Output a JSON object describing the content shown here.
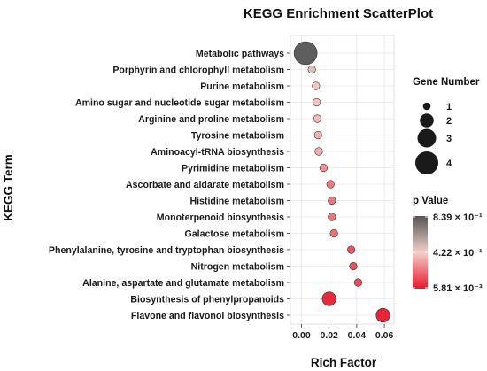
{
  "chart_data": {
    "type": "scatter",
    "title": "KEGG Enrichment ScatterPlot",
    "xlabel": "Rich Factor",
    "ylabel": "KEGG Term",
    "xlim": [
      -0.008,
      0.067
    ],
    "x_ticks": [
      0.0,
      0.02,
      0.04,
      0.06
    ],
    "x_tick_labels": [
      "0.00",
      "0.02",
      "0.04",
      "0.06"
    ],
    "grid": true,
    "legend_position": "right",
    "categories": [
      "Metabolic pathways",
      "Porphyrin and chlorophyll metabolism",
      "Purine metabolism",
      "Amino sugar and nucleotide sugar metabolism",
      "Arginine and proline metabolism",
      "Tyrosine metabolism",
      "Aminoacyl-tRNA biosynthesis",
      "Pyrimidine metabolism",
      "Ascorbate and aldarate metabolism",
      "Histidine metabolism",
      "Monoterpenoid biosynthesis",
      "Galactose metabolism",
      "Phenylalanine, tyrosine and tryptophan biosynthesis",
      "Nitrogen metabolism",
      "Alanine, aspartate and glutamate metabolism",
      "Biosynthesis of phenylpropanoids",
      "Flavone and flavonol biosynthesis"
    ],
    "points": [
      {
        "term": "Metabolic pathways",
        "rich_factor": 0.003,
        "gene_number": 4,
        "p_value": 0.839
      },
      {
        "term": "Porphyrin and chlorophyll metabolism",
        "rich_factor": 0.0075,
        "gene_number": 1,
        "p_value": 0.48
      },
      {
        "term": "Purine metabolism",
        "rich_factor": 0.0105,
        "gene_number": 1,
        "p_value": 0.4
      },
      {
        "term": "Amino sugar and nucleotide sugar metabolism",
        "rich_factor": 0.011,
        "gene_number": 1,
        "p_value": 0.39
      },
      {
        "term": "Arginine and proline metabolism",
        "rich_factor": 0.0115,
        "gene_number": 1,
        "p_value": 0.37
      },
      {
        "term": "Tyrosine metabolism",
        "rich_factor": 0.012,
        "gene_number": 1,
        "p_value": 0.35
      },
      {
        "term": "Aminoacyl-tRNA biosynthesis",
        "rich_factor": 0.0125,
        "gene_number": 1,
        "p_value": 0.34
      },
      {
        "term": "Pyrimidine metabolism",
        "rich_factor": 0.016,
        "gene_number": 1,
        "p_value": 0.27
      },
      {
        "term": "Ascorbate and aldarate metabolism",
        "rich_factor": 0.021,
        "gene_number": 1,
        "p_value": 0.21
      },
      {
        "term": "Histidine metabolism",
        "rich_factor": 0.022,
        "gene_number": 1,
        "p_value": 0.2
      },
      {
        "term": "Monoterpenoid biosynthesis",
        "rich_factor": 0.022,
        "gene_number": 1,
        "p_value": 0.2
      },
      {
        "term": "Galactose metabolism",
        "rich_factor": 0.0235,
        "gene_number": 1,
        "p_value": 0.19
      },
      {
        "term": "Phenylalanine, tyrosine and tryptophan biosynthesis",
        "rich_factor": 0.036,
        "gene_number": 1,
        "p_value": 0.12
      },
      {
        "term": "Nitrogen metabolism",
        "rich_factor": 0.0375,
        "gene_number": 1,
        "p_value": 0.11
      },
      {
        "term": "Alanine, aspartate and glutamate metabolism",
        "rich_factor": 0.041,
        "gene_number": 1,
        "p_value": 0.1
      },
      {
        "term": "Biosynthesis of phenylpropanoids",
        "rich_factor": 0.02,
        "gene_number": 2,
        "p_value": 0.02
      },
      {
        "term": "Flavone and flavonol biosynthesis",
        "rich_factor": 0.059,
        "gene_number": 2,
        "p_value": 0.00581
      }
    ],
    "size_legend": {
      "title": "Gene Number",
      "values": [
        1,
        2,
        3,
        4
      ],
      "labels": [
        "1",
        "2",
        "3",
        "4"
      ]
    },
    "color_legend": {
      "title": "p Value",
      "max": 0.839,
      "mid": 0.422,
      "min": 0.00581,
      "max_label": "8.39 × 10⁻¹",
      "mid_label": "4.22 × 10⁻¹",
      "min_label": "5.81 × 10⁻³",
      "color_high": "#555555",
      "color_mid": "#f2cfc9",
      "color_low": "#e8182d"
    }
  }
}
